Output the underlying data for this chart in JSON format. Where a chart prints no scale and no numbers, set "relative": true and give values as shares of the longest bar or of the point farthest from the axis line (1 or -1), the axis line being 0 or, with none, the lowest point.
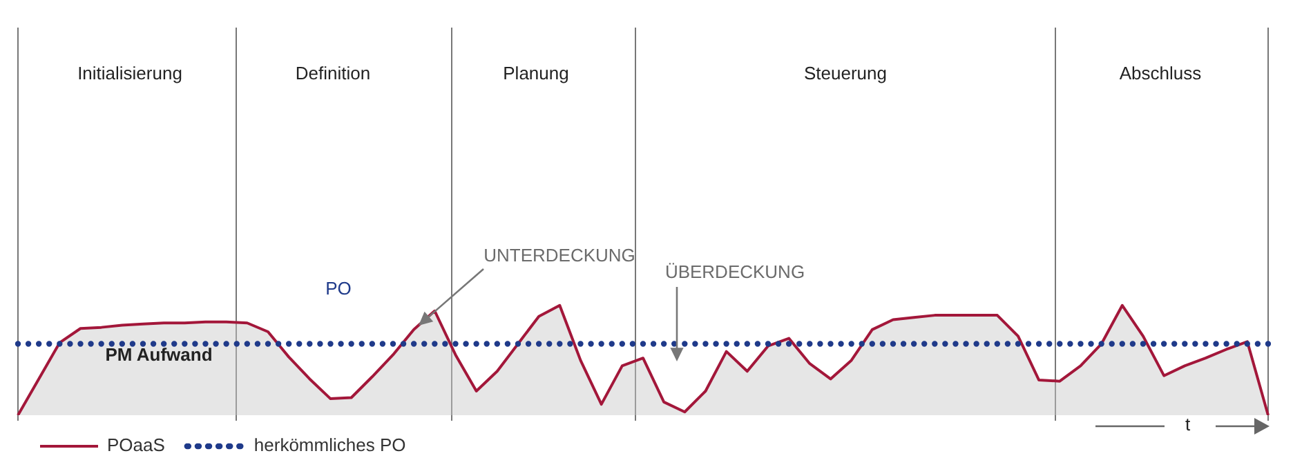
{
  "chart_data": {
    "type": "area",
    "relative": true,
    "tick_labels": false,
    "xlabel": "t",
    "legend": "bottom left",
    "grid": "x",
    "categories": [
      null,
      null,
      null,
      null,
      null,
      null,
      null,
      null,
      null,
      null,
      null,
      null,
      null,
      null,
      null,
      null,
      null,
      null,
      null,
      null,
      null,
      null,
      null,
      null,
      null,
      null,
      null,
      null,
      null,
      null,
      null,
      null,
      null,
      null,
      null,
      null,
      null,
      null,
      null,
      null,
      null,
      null,
      null,
      null,
      null,
      null,
      null,
      null,
      null,
      null,
      null,
      null,
      null,
      null,
      null,
      null,
      null,
      null,
      null,
      null,
      null
    ],
    "series": [
      {
        "name": "POaaS",
        "color": "#a3173a",
        "line_style": "solid",
        "marker": "none",
        "values": [
          0,
          0.33,
          0.66,
          0.79,
          0.8,
          0.82,
          0.83,
          0.84,
          0.84,
          0.85,
          0.85,
          0.84,
          0.76,
          0.53,
          0.33,
          0.15,
          0.16,
          0.35,
          0.55,
          0.78,
          0.95,
          0.55,
          0.22,
          0.4,
          0.65,
          0.9,
          1,
          0.5,
          0.1,
          0.45,
          0.52,
          0.12,
          0.03,
          0.22,
          0.58,
          0.4,
          0.63,
          0.7,
          0.47,
          0.33,
          0.5,
          0.78,
          0.87,
          0.89,
          0.91,
          0.91,
          0.91,
          0.91,
          0.72,
          0.32,
          0.31,
          0.45,
          0.65,
          1,
          0.72,
          0.36,
          0.45,
          0.52,
          0.6,
          0.67,
          0
        ]
      },
      {
        "name": "herkömmliches PO",
        "type": "line",
        "color": "#1f3a8a",
        "line_style": "dotted",
        "marker": "none",
        "values": [
          0.65,
          0.65,
          0.65,
          0.65,
          0.65,
          0.65,
          0.65,
          0.65,
          0.65,
          0.65,
          0.65,
          0.65,
          0.65,
          0.65,
          0.65,
          0.65,
          0.65,
          0.65,
          0.65,
          0.65,
          0.65,
          0.65,
          0.65,
          0.65,
          0.65,
          0.65,
          0.65,
          0.65,
          0.65,
          0.65,
          0.65,
          0.65,
          0.65,
          0.65,
          0.65,
          0.65,
          0.65,
          0.65,
          0.65,
          0.65,
          0.65,
          0.65,
          0.65,
          0.65,
          0.65,
          0.65,
          0.65,
          0.65,
          0.65,
          0.65,
          0.65,
          0.65,
          0.65,
          0.65,
          0.65,
          0.65,
          0.65,
          0.65,
          0.65,
          0.65,
          0.65
        ]
      }
    ],
    "annotations": [
      "Initialisierung",
      "Definition",
      "Planung",
      "Steuerung",
      "Abschluss",
      "PO",
      "PM Aufwand",
      "UNTERDECKUNG",
      "ÜBERDECKUNG"
    ]
  }
}
